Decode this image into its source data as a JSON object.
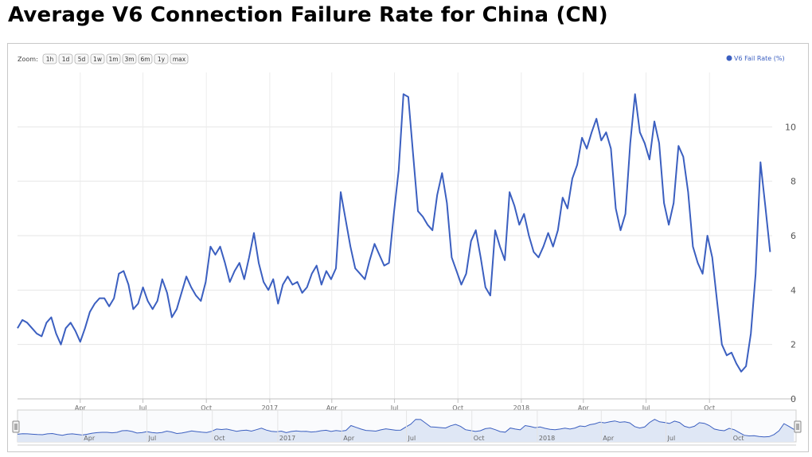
{
  "page": {
    "title": "Average V6 Connection Failure Rate for China (CN)"
  },
  "zoom": {
    "label": "Zoom:",
    "buttons": [
      "1h",
      "1d",
      "5d",
      "1w",
      "1m",
      "3m",
      "6m",
      "1y",
      "max"
    ]
  },
  "colors": {
    "series": "#3b5fc0",
    "navigator_fill": "#dfe7f5",
    "grid": "#e6e6e6"
  },
  "chart_data": {
    "type": "line",
    "title": "Average V6 Connection Failure Rate for China (CN)",
    "xlabel": "",
    "ylabel": "",
    "y_axis_side": "right",
    "ylim": [
      0,
      12
    ],
    "yticks": [
      0,
      2,
      4,
      6,
      8,
      10
    ],
    "x_range": [
      "2016-01-01",
      "2018-12-31"
    ],
    "x_ticks": [
      {
        "date": "2016-04-01",
        "label": "Apr"
      },
      {
        "date": "2016-07-01",
        "label": "Jul"
      },
      {
        "date": "2016-10-01",
        "label": "Oct"
      },
      {
        "date": "2017-01-01",
        "label": "2017"
      },
      {
        "date": "2017-04-01",
        "label": "Apr"
      },
      {
        "date": "2017-07-01",
        "label": "Jul"
      },
      {
        "date": "2017-10-01",
        "label": "Oct"
      },
      {
        "date": "2018-01-01",
        "label": "2018"
      },
      {
        "date": "2018-04-01",
        "label": "Apr"
      },
      {
        "date": "2018-07-01",
        "label": "Jul"
      },
      {
        "date": "2018-10-01",
        "label": "Oct"
      }
    ],
    "navigator_ticks": [
      "Apr",
      "Jul",
      "Oct",
      "2017",
      "Apr",
      "Jul",
      "Oct",
      "2018",
      "Apr",
      "Jul",
      "Oct"
    ],
    "grid": true,
    "legend": {
      "position": "top-right"
    },
    "series": [
      {
        "name": "V6 Fail Rate (%)",
        "color": "#3b5fc0",
        "points": [
          [
            "2016-01-01",
            2.6
          ],
          [
            "2016-01-08",
            2.9
          ],
          [
            "2016-01-15",
            2.8
          ],
          [
            "2016-01-22",
            2.6
          ],
          [
            "2016-01-29",
            2.4
          ],
          [
            "2016-02-05",
            2.3
          ],
          [
            "2016-02-12",
            2.8
          ],
          [
            "2016-02-19",
            3.0
          ],
          [
            "2016-02-26",
            2.4
          ],
          [
            "2016-03-04",
            2.0
          ],
          [
            "2016-03-11",
            2.6
          ],
          [
            "2016-03-18",
            2.8
          ],
          [
            "2016-03-25",
            2.5
          ],
          [
            "2016-04-01",
            2.1
          ],
          [
            "2016-04-08",
            2.6
          ],
          [
            "2016-04-15",
            3.2
          ],
          [
            "2016-04-22",
            3.5
          ],
          [
            "2016-04-29",
            3.7
          ],
          [
            "2016-05-06",
            3.7
          ],
          [
            "2016-05-13",
            3.4
          ],
          [
            "2016-05-20",
            3.7
          ],
          [
            "2016-05-27",
            4.6
          ],
          [
            "2016-06-03",
            4.7
          ],
          [
            "2016-06-10",
            4.2
          ],
          [
            "2016-06-17",
            3.3
          ],
          [
            "2016-06-24",
            3.5
          ],
          [
            "2016-07-01",
            4.1
          ],
          [
            "2016-07-08",
            3.6
          ],
          [
            "2016-07-15",
            3.3
          ],
          [
            "2016-07-22",
            3.6
          ],
          [
            "2016-07-29",
            4.4
          ],
          [
            "2016-08-05",
            3.9
          ],
          [
            "2016-08-12",
            3.0
          ],
          [
            "2016-08-19",
            3.3
          ],
          [
            "2016-08-26",
            3.9
          ],
          [
            "2016-09-02",
            4.5
          ],
          [
            "2016-09-09",
            4.1
          ],
          [
            "2016-09-16",
            3.8
          ],
          [
            "2016-09-23",
            3.6
          ],
          [
            "2016-09-30",
            4.3
          ],
          [
            "2016-10-07",
            5.6
          ],
          [
            "2016-10-14",
            5.3
          ],
          [
            "2016-10-21",
            5.6
          ],
          [
            "2016-10-28",
            5.0
          ],
          [
            "2016-11-04",
            4.3
          ],
          [
            "2016-11-11",
            4.7
          ],
          [
            "2016-11-18",
            5.0
          ],
          [
            "2016-11-25",
            4.4
          ],
          [
            "2016-12-02",
            5.2
          ],
          [
            "2016-12-09",
            6.1
          ],
          [
            "2016-12-16",
            5.0
          ],
          [
            "2016-12-23",
            4.3
          ],
          [
            "2016-12-30",
            4.0
          ],
          [
            "2017-01-06",
            4.4
          ],
          [
            "2017-01-13",
            3.5
          ],
          [
            "2017-01-20",
            4.2
          ],
          [
            "2017-01-27",
            4.5
          ],
          [
            "2017-02-03",
            4.2
          ],
          [
            "2017-02-10",
            4.3
          ],
          [
            "2017-02-17",
            3.9
          ],
          [
            "2017-02-24",
            4.1
          ],
          [
            "2017-03-03",
            4.6
          ],
          [
            "2017-03-10",
            4.9
          ],
          [
            "2017-03-17",
            4.2
          ],
          [
            "2017-03-24",
            4.7
          ],
          [
            "2017-03-31",
            4.4
          ],
          [
            "2017-04-07",
            4.8
          ],
          [
            "2017-04-14",
            7.6
          ],
          [
            "2017-04-21",
            6.6
          ],
          [
            "2017-04-28",
            5.6
          ],
          [
            "2017-05-05",
            4.8
          ],
          [
            "2017-05-12",
            4.6
          ],
          [
            "2017-05-19",
            4.4
          ],
          [
            "2017-05-26",
            5.1
          ],
          [
            "2017-06-02",
            5.7
          ],
          [
            "2017-06-09",
            5.3
          ],
          [
            "2017-06-16",
            4.9
          ],
          [
            "2017-06-23",
            5.0
          ],
          [
            "2017-06-30",
            6.8
          ],
          [
            "2017-07-07",
            8.4
          ],
          [
            "2017-07-14",
            11.2
          ],
          [
            "2017-07-21",
            11.1
          ],
          [
            "2017-07-28",
            9.0
          ],
          [
            "2017-08-04",
            6.9
          ],
          [
            "2017-08-11",
            6.7
          ],
          [
            "2017-08-18",
            6.4
          ],
          [
            "2017-08-25",
            6.2
          ],
          [
            "2017-09-01",
            7.5
          ],
          [
            "2017-09-08",
            8.3
          ],
          [
            "2017-09-15",
            7.2
          ],
          [
            "2017-09-22",
            5.2
          ],
          [
            "2017-09-29",
            4.7
          ],
          [
            "2017-10-06",
            4.2
          ],
          [
            "2017-10-13",
            4.6
          ],
          [
            "2017-10-20",
            5.8
          ],
          [
            "2017-10-27",
            6.2
          ],
          [
            "2017-11-03",
            5.2
          ],
          [
            "2017-11-10",
            4.1
          ],
          [
            "2017-11-17",
            3.8
          ],
          [
            "2017-11-24",
            6.2
          ],
          [
            "2017-12-01",
            5.6
          ],
          [
            "2017-12-08",
            5.1
          ],
          [
            "2017-12-15",
            7.6
          ],
          [
            "2017-12-22",
            7.1
          ],
          [
            "2017-12-29",
            6.4
          ],
          [
            "2018-01-05",
            6.8
          ],
          [
            "2018-01-12",
            6.0
          ],
          [
            "2018-01-19",
            5.4
          ],
          [
            "2018-01-26",
            5.2
          ],
          [
            "2018-02-02",
            5.6
          ],
          [
            "2018-02-09",
            6.1
          ],
          [
            "2018-02-16",
            5.6
          ],
          [
            "2018-02-23",
            6.2
          ],
          [
            "2018-03-02",
            7.4
          ],
          [
            "2018-03-09",
            7.0
          ],
          [
            "2018-03-16",
            8.1
          ],
          [
            "2018-03-23",
            8.6
          ],
          [
            "2018-03-30",
            9.6
          ],
          [
            "2018-04-06",
            9.2
          ],
          [
            "2018-04-13",
            9.8
          ],
          [
            "2018-04-20",
            10.3
          ],
          [
            "2018-04-27",
            9.5
          ],
          [
            "2018-05-04",
            9.8
          ],
          [
            "2018-05-11",
            9.2
          ],
          [
            "2018-05-18",
            7.0
          ],
          [
            "2018-05-25",
            6.2
          ],
          [
            "2018-06-01",
            6.8
          ],
          [
            "2018-06-08",
            9.4
          ],
          [
            "2018-06-15",
            11.2
          ],
          [
            "2018-06-22",
            9.8
          ],
          [
            "2018-06-29",
            9.4
          ],
          [
            "2018-07-06",
            8.8
          ],
          [
            "2018-07-13",
            10.2
          ],
          [
            "2018-07-20",
            9.4
          ],
          [
            "2018-07-27",
            7.2
          ],
          [
            "2018-08-03",
            6.4
          ],
          [
            "2018-08-10",
            7.2
          ],
          [
            "2018-08-17",
            9.3
          ],
          [
            "2018-08-24",
            8.9
          ],
          [
            "2018-08-31",
            7.6
          ],
          [
            "2018-09-07",
            5.6
          ],
          [
            "2018-09-14",
            5.0
          ],
          [
            "2018-09-21",
            4.6
          ],
          [
            "2018-09-28",
            6.0
          ],
          [
            "2018-10-05",
            5.2
          ],
          [
            "2018-10-12",
            3.6
          ],
          [
            "2018-10-19",
            2.0
          ],
          [
            "2018-10-26",
            1.6
          ],
          [
            "2018-11-02",
            1.7
          ],
          [
            "2018-11-09",
            1.3
          ],
          [
            "2018-11-16",
            1.0
          ],
          [
            "2018-11-23",
            1.2
          ],
          [
            "2018-11-30",
            2.4
          ],
          [
            "2018-12-07",
            4.6
          ],
          [
            "2018-12-14",
            8.7
          ],
          [
            "2018-12-21",
            7.1
          ],
          [
            "2018-12-28",
            5.4
          ]
        ]
      }
    ]
  }
}
